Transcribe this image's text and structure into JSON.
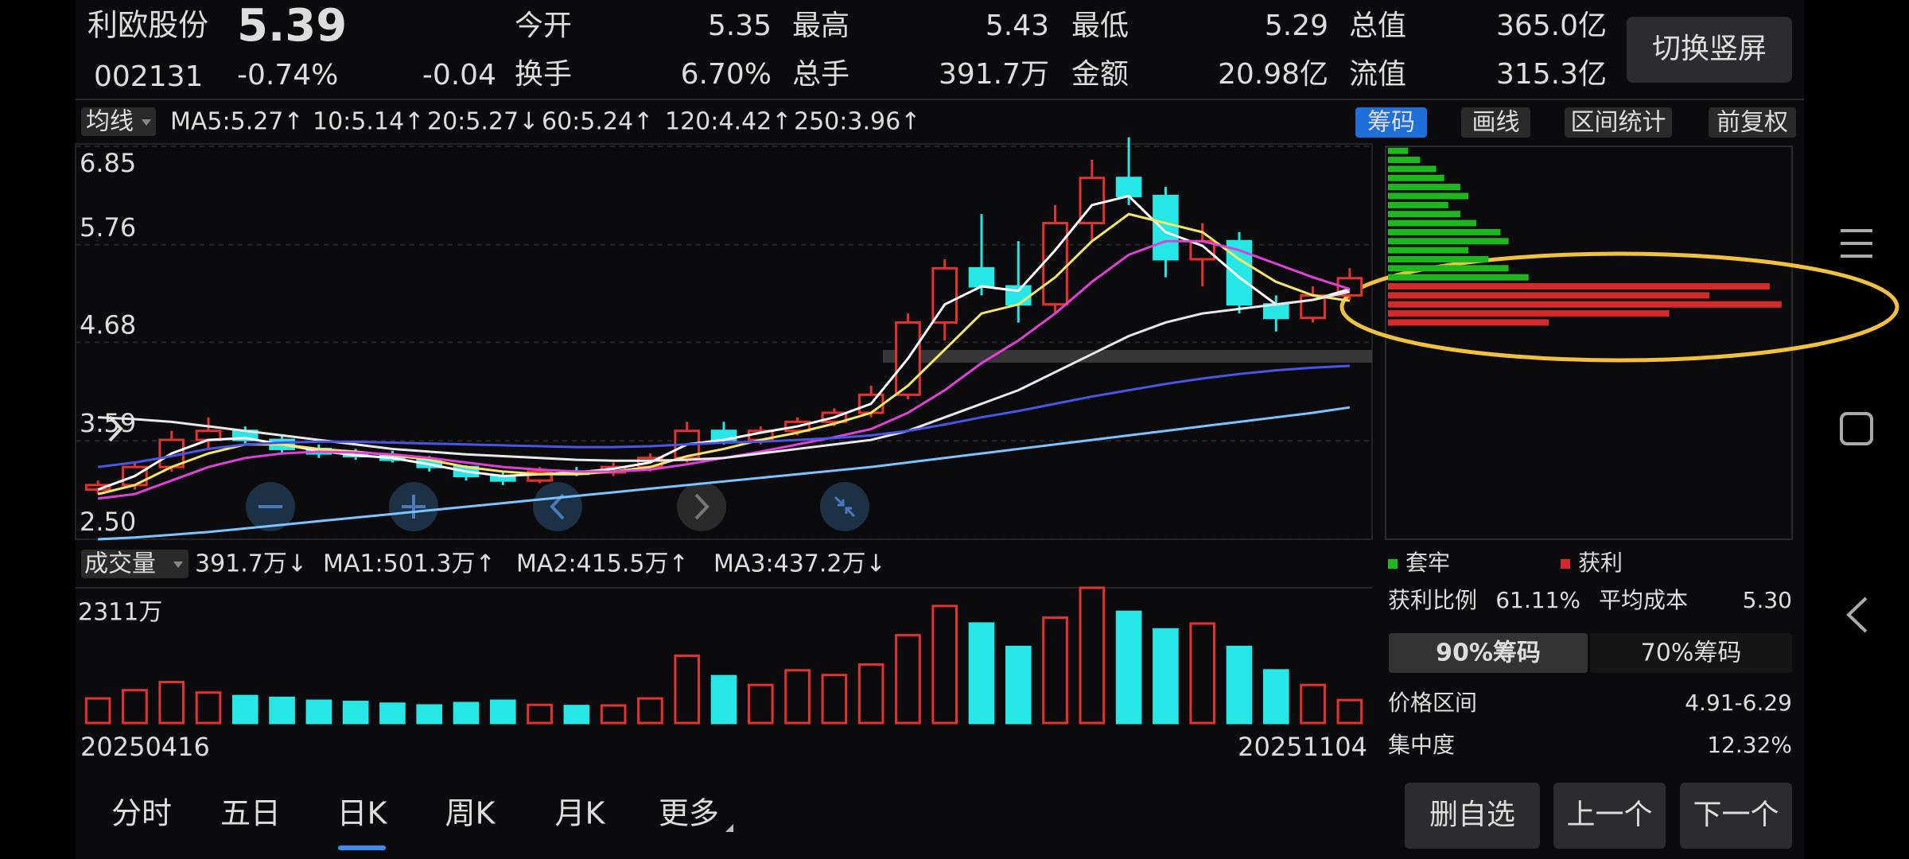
{
  "header": {
    "name": "利欧股份",
    "price": "5.39",
    "code": "002131",
    "change_pct": "-0.74%",
    "change": "-0.04",
    "stats": [
      {
        "label": "今开",
        "value": "5.35",
        "color": "#3fd23f"
      },
      {
        "label": "最高",
        "value": "5.43",
        "color": "#ffffff"
      },
      {
        "label": "最低",
        "value": "5.29",
        "color": "#3fd23f"
      },
      {
        "label": "总值",
        "value": "365.0亿",
        "color": "#ffffff"
      },
      {
        "label": "换手",
        "value": "6.70%",
        "color": "#ffffff"
      },
      {
        "label": "总手",
        "value": "391.7万",
        "color": "#ffffff"
      },
      {
        "label": "金额",
        "value": "20.98亿",
        "color": "#ffffff"
      },
      {
        "label": "流值",
        "value": "315.3亿",
        "color": "#ffffff"
      }
    ],
    "button": "切换竖屏"
  },
  "ma_legend": {
    "selector": "均线",
    "items": [
      {
        "text": "MA5:5.27↑",
        "color": "#ffffff"
      },
      {
        "text": "10:5.14↑",
        "color": "#f5e663"
      },
      {
        "text": "20:5.27↓",
        "color": "#e040d8"
      },
      {
        "text": "60:5.24↑",
        "color": "#ffffff"
      },
      {
        "text": "120:4.42↑",
        "color": "#5a63ff"
      },
      {
        "text": "250:3.96↑",
        "color": "#7cc4ff"
      }
    ]
  },
  "toolbar": {
    "items": [
      "筹码",
      "画线",
      "区间统计",
      "前复权"
    ],
    "active": 0
  },
  "chart_data": [
    {
      "type": "candlestick",
      "up_color": "#e5322d",
      "down_color": "#27e6e6",
      "open": [
        3.05,
        3.1,
        3.3,
        3.6,
        3.7,
        3.6,
        3.5,
        3.45,
        3.42,
        3.38,
        3.3,
        3.2,
        3.15,
        3.25,
        3.24,
        3.3,
        3.4,
        3.7,
        3.6,
        3.7,
        3.8,
        3.9,
        4.1,
        4.9,
        5.5,
        5.3,
        5.1,
        6.0,
        6.5,
        6.3,
        5.6,
        5.8,
        5.1,
        4.95,
        5.2
      ],
      "high": [
        3.15,
        3.35,
        3.7,
        3.85,
        3.75,
        3.65,
        3.55,
        3.5,
        3.48,
        3.42,
        3.32,
        3.25,
        3.3,
        3.3,
        3.35,
        3.45,
        3.8,
        3.8,
        3.75,
        3.85,
        3.95,
        4.2,
        5.0,
        5.6,
        6.1,
        5.8,
        6.2,
        6.7,
        6.95,
        6.4,
        6.0,
        5.9,
        5.2,
        5.3,
        5.5
      ],
      "low": [
        3.0,
        3.05,
        3.25,
        3.5,
        3.55,
        3.45,
        3.4,
        3.38,
        3.35,
        3.25,
        3.15,
        3.1,
        3.12,
        3.2,
        3.2,
        3.25,
        3.35,
        3.55,
        3.55,
        3.65,
        3.75,
        3.85,
        4.05,
        4.7,
        5.2,
        4.9,
        5.0,
        5.8,
        6.2,
        5.4,
        5.3,
        5.0,
        4.8,
        4.9,
        5.15
      ],
      "close": [
        3.1,
        3.3,
        3.6,
        3.7,
        3.6,
        3.5,
        3.45,
        3.42,
        3.38,
        3.3,
        3.2,
        3.15,
        3.25,
        3.24,
        3.3,
        3.4,
        3.7,
        3.6,
        3.7,
        3.8,
        3.9,
        4.1,
        4.9,
        5.5,
        5.3,
        5.1,
        6.0,
        6.5,
        6.3,
        5.6,
        5.8,
        5.1,
        4.95,
        5.2,
        5.39
      ],
      "ma_series": [
        {
          "color": "#ffffff",
          "values": [
            3.05,
            3.2,
            3.45,
            3.6,
            3.62,
            3.55,
            3.48,
            3.43,
            3.4,
            3.33,
            3.25,
            3.2,
            3.22,
            3.24,
            3.28,
            3.35,
            3.55,
            3.6,
            3.68,
            3.75,
            3.85,
            4.0,
            4.5,
            5.1,
            5.3,
            5.25,
            5.7,
            6.2,
            6.3,
            5.9,
            5.75,
            5.4,
            5.1,
            5.15,
            5.27
          ]
        },
        {
          "color": "#f5e663",
          "values": [
            3.0,
            3.1,
            3.3,
            3.45,
            3.55,
            3.55,
            3.5,
            3.47,
            3.43,
            3.38,
            3.3,
            3.25,
            3.22,
            3.22,
            3.25,
            3.3,
            3.42,
            3.5,
            3.6,
            3.68,
            3.78,
            3.9,
            4.2,
            4.6,
            5.0,
            5.1,
            5.4,
            5.8,
            6.1,
            6.0,
            5.9,
            5.6,
            5.35,
            5.2,
            5.14
          ]
        },
        {
          "color": "#e040d8",
          "values": [
            2.95,
            3.0,
            3.15,
            3.3,
            3.4,
            3.45,
            3.47,
            3.46,
            3.44,
            3.4,
            3.35,
            3.3,
            3.27,
            3.25,
            3.25,
            3.27,
            3.33,
            3.4,
            3.47,
            3.55,
            3.63,
            3.72,
            3.9,
            4.15,
            4.45,
            4.7,
            5.0,
            5.35,
            5.65,
            5.8,
            5.8,
            5.7,
            5.55,
            5.4,
            5.27
          ]
        },
        {
          "color": "#e8e8e8",
          "values": [
            3.85,
            3.83,
            3.8,
            3.75,
            3.7,
            3.65,
            3.6,
            3.55,
            3.5,
            3.47,
            3.44,
            3.42,
            3.4,
            3.38,
            3.37,
            3.37,
            3.38,
            3.4,
            3.45,
            3.5,
            3.55,
            3.6,
            3.7,
            3.85,
            4.0,
            4.15,
            4.35,
            4.55,
            4.75,
            4.9,
            5.0,
            5.05,
            5.1,
            5.15,
            5.24
          ]
        },
        {
          "color": "#4a55e8",
          "values": [
            3.3,
            3.35,
            3.42,
            3.5,
            3.55,
            3.57,
            3.58,
            3.58,
            3.57,
            3.56,
            3.55,
            3.54,
            3.53,
            3.52,
            3.52,
            3.53,
            3.55,
            3.57,
            3.58,
            3.6,
            3.62,
            3.65,
            3.7,
            3.77,
            3.85,
            3.92,
            4.0,
            4.08,
            4.15,
            4.22,
            4.28,
            4.33,
            4.37,
            4.4,
            4.42
          ]
        },
        {
          "color": "#7cc4ff",
          "values": [
            2.5,
            2.52,
            2.55,
            2.58,
            2.62,
            2.66,
            2.7,
            2.74,
            2.78,
            2.82,
            2.86,
            2.9,
            2.94,
            2.98,
            3.02,
            3.06,
            3.1,
            3.14,
            3.18,
            3.22,
            3.26,
            3.3,
            3.35,
            3.4,
            3.45,
            3.5,
            3.55,
            3.6,
            3.65,
            3.7,
            3.75,
            3.8,
            3.85,
            3.9,
            3.96
          ]
        }
      ],
      "ylim": [
        2.5,
        6.85
      ],
      "yticks": [
        6.85,
        5.76,
        4.68,
        3.59,
        {
          "value": 2.5,
          "label": "2.50"
        }
      ]
    },
    {
      "type": "bar",
      "legend": {
        "selector": "成交量",
        "items": [
          {
            "text": "391.7万↓",
            "color": "#ffffff"
          },
          {
            "text": "MA1:501.3万↑",
            "color": "#f5e663"
          },
          {
            "text": "MA2:415.5万↑",
            "color": "#e040d8"
          },
          {
            "text": "MA3:437.2万↓",
            "color": "#2fb82f"
          }
        ]
      },
      "values": [
        420,
        560,
        700,
        520,
        460,
        430,
        380,
        360,
        330,
        300,
        340,
        380,
        310,
        290,
        300,
        420,
        1150,
        800,
        650,
        900,
        820,
        1000,
        1500,
        2000,
        1700,
        1300,
        1800,
        2311,
        1900,
        1600,
        1700,
        1300,
        900,
        650,
        392
      ],
      "ylim": [
        0,
        2311
      ],
      "yticks": [
        {
          "value": 2311,
          "label": "2311万"
        }
      ],
      "x_labels": [
        "20250416",
        "20251104"
      ]
    },
    {
      "type": "hbar",
      "ylim": [
        2.5,
        6.85
      ],
      "xlim": [
        0,
        100
      ],
      "series": [
        {
          "name": "套牢",
          "color": "#1db81d",
          "prices": [
            6.8,
            6.7,
            6.6,
            6.5,
            6.4,
            6.3,
            6.2,
            6.1,
            6.0,
            5.9,
            5.8,
            5.7,
            5.6,
            5.5,
            5.4
          ],
          "values": [
            5,
            8,
            12,
            14,
            18,
            20,
            15,
            18,
            22,
            28,
            30,
            20,
            25,
            30,
            35
          ]
        },
        {
          "name": "获利",
          "color": "#d42a2a",
          "prices": [
            5.3,
            5.2,
            5.1,
            5.0,
            4.9
          ],
          "values": [
            95,
            80,
            98,
            70,
            40
          ]
        }
      ]
    }
  ],
  "chip_stats": {
    "ratio_label": "获利比例",
    "ratio": "61.11%",
    "cost_label": "平均成本",
    "cost": "5.30",
    "toggle": [
      "90%筹码",
      "70%筹码"
    ],
    "toggle_active": 0,
    "range_label": "价格区间",
    "range": "4.91-6.29",
    "conc_label": "集中度",
    "conc": "12.32%"
  },
  "tabs": {
    "items": [
      "分时",
      "五日",
      "日K",
      "周K",
      "月K",
      "更多"
    ],
    "active": 2
  },
  "buttons": [
    "删自选",
    "上一个",
    "下一个"
  ]
}
